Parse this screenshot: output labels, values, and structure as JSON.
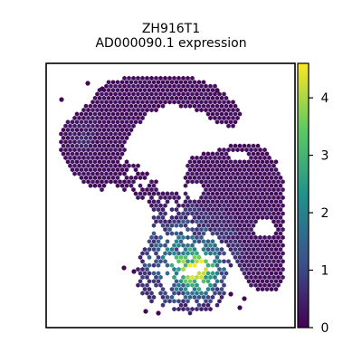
{
  "chart_data": {
    "type": "scatter",
    "title_line1": "ZH916T1",
    "title_line2": "AD000090.1 expression",
    "xlabel": "",
    "ylabel": "",
    "show_axis_ticks": false,
    "grid": false,
    "marker": "hexagon",
    "colormap": "viridis",
    "colorbar": {
      "location": "right",
      "vmin": 0,
      "vmax": 4.6,
      "ticks": [
        0,
        1,
        2,
        3,
        4
      ],
      "tick_labels": [
        "0",
        "1",
        "2",
        "3",
        "4"
      ]
    },
    "colormap_stops": [
      "#440154",
      "#3b528b",
      "#21918c",
      "#5ec962",
      "#fde725"
    ],
    "expression_summary": {
      "background_level": 0.05,
      "regions": [
        {
          "region": "upper-left-lobe",
          "level": 0.6
        },
        {
          "region": "lower-center",
          "level": 2.3
        },
        {
          "region": "lower-center-hotspot",
          "level": 3.4
        }
      ]
    }
  }
}
